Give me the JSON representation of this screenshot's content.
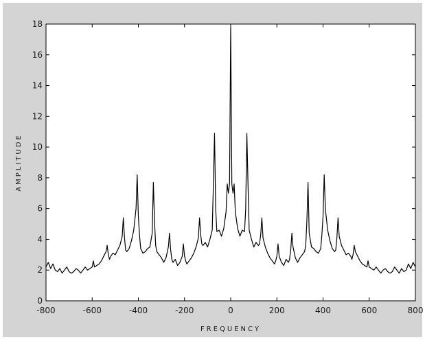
{
  "chart_data": {
    "type": "line",
    "title": "",
    "xlabel": "FREQUENCY",
    "ylabel": "AMPLITUDE",
    "xlim": [
      -800,
      800
    ],
    "ylim": [
      0,
      18
    ],
    "xticks": [
      -800,
      -600,
      -400,
      -200,
      0,
      200,
      400,
      600,
      800
    ],
    "yticks": [
      0,
      2,
      4,
      6,
      8,
      10,
      12,
      14,
      16,
      18
    ],
    "xtick_labels": [
      "-800",
      "-600",
      "-400",
      "-200",
      "0",
      "200",
      "400",
      "600",
      "800"
    ],
    "ytick_labels": [
      "0",
      "2",
      "4",
      "6",
      "8",
      "10",
      "12",
      "14",
      "16",
      "18"
    ],
    "grid": false,
    "line_color": "#000000",
    "background_color": "#d4d4d4",
    "plot_color": "#ffffff",
    "series": [
      {
        "x": [
          -800,
          -790,
          -780,
          -770,
          -760,
          -750,
          -740,
          -730,
          -720,
          -710,
          -700,
          -690,
          -680,
          -670,
          -660,
          -650,
          -640,
          -630,
          -620,
          -610,
          -600,
          -595,
          -590,
          -580,
          -570,
          -560,
          -550,
          -540,
          -535,
          -530,
          -525,
          -520,
          -510,
          -500,
          -490,
          -480,
          -470,
          -465,
          -460,
          -455,
          -450,
          -440,
          -430,
          -420,
          -410,
          -405,
          -400,
          -395,
          -390,
          -380,
          -370,
          -360,
          -350,
          -340,
          -335,
          -330,
          -325,
          -320,
          -310,
          -300,
          -290,
          -280,
          -270,
          -265,
          -260,
          -255,
          -250,
          -240,
          -230,
          -220,
          -210,
          -205,
          -200,
          -195,
          -190,
          -180,
          -170,
          -160,
          -150,
          -140,
          -135,
          -130,
          -125,
          -120,
          -110,
          -100,
          -90,
          -80,
          -75,
          -70,
          -65,
          -60,
          -50,
          -40,
          -30,
          -20,
          -15,
          -10,
          -5,
          0,
          5,
          10,
          15,
          20,
          30,
          40,
          50,
          60,
          65,
          70,
          75,
          80,
          90,
          100,
          110,
          120,
          125,
          130,
          135,
          140,
          150,
          160,
          170,
          180,
          190,
          195,
          200,
          205,
          210,
          220,
          230,
          240,
          250,
          255,
          260,
          265,
          270,
          280,
          290,
          300,
          310,
          320,
          325,
          330,
          335,
          340,
          350,
          360,
          370,
          380,
          390,
          395,
          400,
          405,
          410,
          420,
          430,
          440,
          450,
          455,
          460,
          465,
          470,
          480,
          490,
          500,
          510,
          520,
          525,
          530,
          535,
          540,
          550,
          560,
          570,
          580,
          590,
          595,
          600,
          610,
          620,
          630,
          640,
          650,
          660,
          670,
          680,
          690,
          700,
          710,
          720,
          730,
          740,
          750,
          760,
          770,
          780,
          790,
          800
        ],
        "y": [
          2.2,
          2.5,
          2.1,
          2.4,
          2.0,
          1.9,
          2.1,
          1.8,
          2.0,
          2.2,
          1.9,
          1.8,
          1.9,
          2.1,
          2.0,
          1.8,
          2.0,
          2.2,
          2.0,
          2.1,
          2.2,
          2.6,
          2.2,
          2.3,
          2.4,
          2.6,
          2.9,
          3.2,
          3.6,
          3.0,
          2.7,
          2.9,
          3.1,
          3.0,
          3.3,
          3.6,
          4.2,
          5.4,
          4.1,
          3.3,
          3.2,
          3.4,
          3.9,
          4.6,
          6.0,
          8.2,
          5.5,
          4.3,
          3.4,
          3.1,
          3.2,
          3.4,
          3.5,
          4.4,
          7.7,
          5.2,
          3.6,
          3.2,
          3.0,
          2.8,
          2.5,
          2.8,
          3.5,
          4.4,
          3.3,
          2.7,
          2.5,
          2.7,
          2.3,
          2.5,
          2.9,
          3.7,
          2.9,
          2.6,
          2.4,
          2.6,
          2.8,
          3.1,
          3.5,
          4.1,
          5.4,
          4.3,
          3.7,
          3.6,
          3.8,
          3.5,
          4.0,
          4.6,
          7.6,
          10.9,
          6.0,
          4.5,
          4.6,
          4.2,
          4.7,
          5.8,
          7.6,
          7.0,
          7.6,
          17.8,
          7.6,
          7.0,
          7.6,
          5.8,
          4.7,
          4.2,
          4.6,
          4.5,
          6.0,
          10.9,
          7.6,
          4.6,
          4.0,
          3.5,
          3.8,
          3.6,
          3.7,
          4.3,
          5.4,
          4.1,
          3.5,
          3.1,
          2.8,
          2.6,
          2.4,
          2.6,
          2.9,
          3.7,
          2.9,
          2.5,
          2.3,
          2.7,
          2.5,
          2.7,
          3.3,
          4.4,
          3.5,
          2.8,
          2.5,
          2.8,
          3.0,
          3.2,
          3.6,
          5.2,
          7.7,
          4.4,
          3.5,
          3.4,
          3.2,
          3.1,
          3.4,
          4.3,
          5.5,
          8.2,
          6.0,
          4.6,
          3.9,
          3.4,
          3.2,
          3.3,
          4.1,
          5.4,
          4.2,
          3.6,
          3.3,
          3.0,
          3.1,
          2.9,
          2.7,
          3.0,
          3.6,
          3.2,
          2.9,
          2.6,
          2.4,
          2.3,
          2.2,
          2.6,
          2.2,
          2.1,
          2.0,
          2.2,
          2.0,
          1.8,
          2.0,
          2.1,
          1.9,
          1.8,
          1.9,
          2.2,
          2.0,
          1.8,
          2.1,
          1.9,
          2.0,
          2.4,
          2.1,
          2.5,
          2.2
        ]
      }
    ]
  }
}
